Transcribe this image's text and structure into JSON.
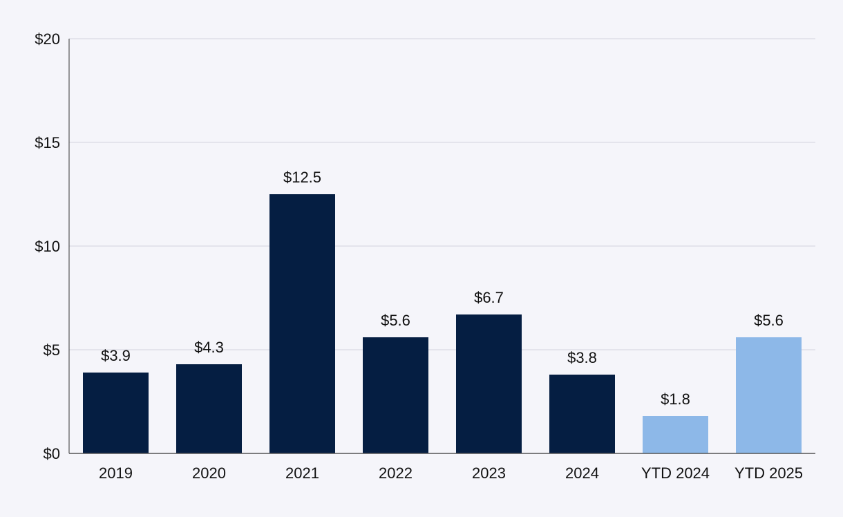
{
  "chart_data": {
    "type": "bar",
    "categories": [
      "2019",
      "2020",
      "2021",
      "2022",
      "2023",
      "2024",
      "YTD 2024",
      "YTD 2025"
    ],
    "values": [
      3.9,
      4.3,
      12.5,
      5.6,
      6.7,
      3.8,
      1.8,
      5.6
    ],
    "data_labels": [
      "$3.9",
      "$4.3",
      "$12.5",
      "$5.6",
      "$6.7",
      "$3.8",
      "$1.8",
      "$5.6"
    ],
    "ylim": [
      0,
      20
    ],
    "yticks": [
      0,
      5,
      10,
      15,
      20
    ],
    "ytick_labels": [
      "$0",
      "$5",
      "$10",
      "$15",
      "$20"
    ],
    "title": "",
    "xlabel": "",
    "ylabel": "",
    "grid": true,
    "colors": {
      "annual": "#051e42",
      "ytd": "#8db8e8",
      "grid": "#d9d9e3",
      "axis": "#555555",
      "background": "#f5f5fa"
    },
    "bar_color_groups": [
      "annual",
      "annual",
      "annual",
      "annual",
      "annual",
      "annual",
      "ytd",
      "ytd"
    ]
  }
}
